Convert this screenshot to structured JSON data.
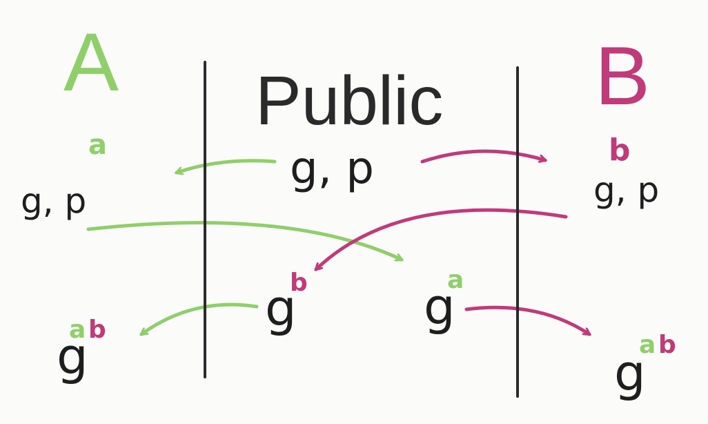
{
  "labels": {
    "party_a": "A",
    "party_public": "Public",
    "party_b": "B"
  },
  "alice": {
    "secret": "a",
    "public_params": "g, p",
    "shared_base": "g",
    "shared_exp_a": "a",
    "shared_exp_b": "b"
  },
  "public_area": {
    "params": "g, p",
    "b_value_base": "g",
    "b_value_exp": "b",
    "a_value_base": "g",
    "a_value_exp": "a"
  },
  "bob": {
    "secret": "b",
    "public_params": "g, p",
    "shared_base": "g",
    "shared_exp_a": "a",
    "shared_exp_b": "b"
  },
  "colors": {
    "party_a": "#8fcf6a",
    "party_b": "#c23a78",
    "ink": "#1f1e1e"
  }
}
